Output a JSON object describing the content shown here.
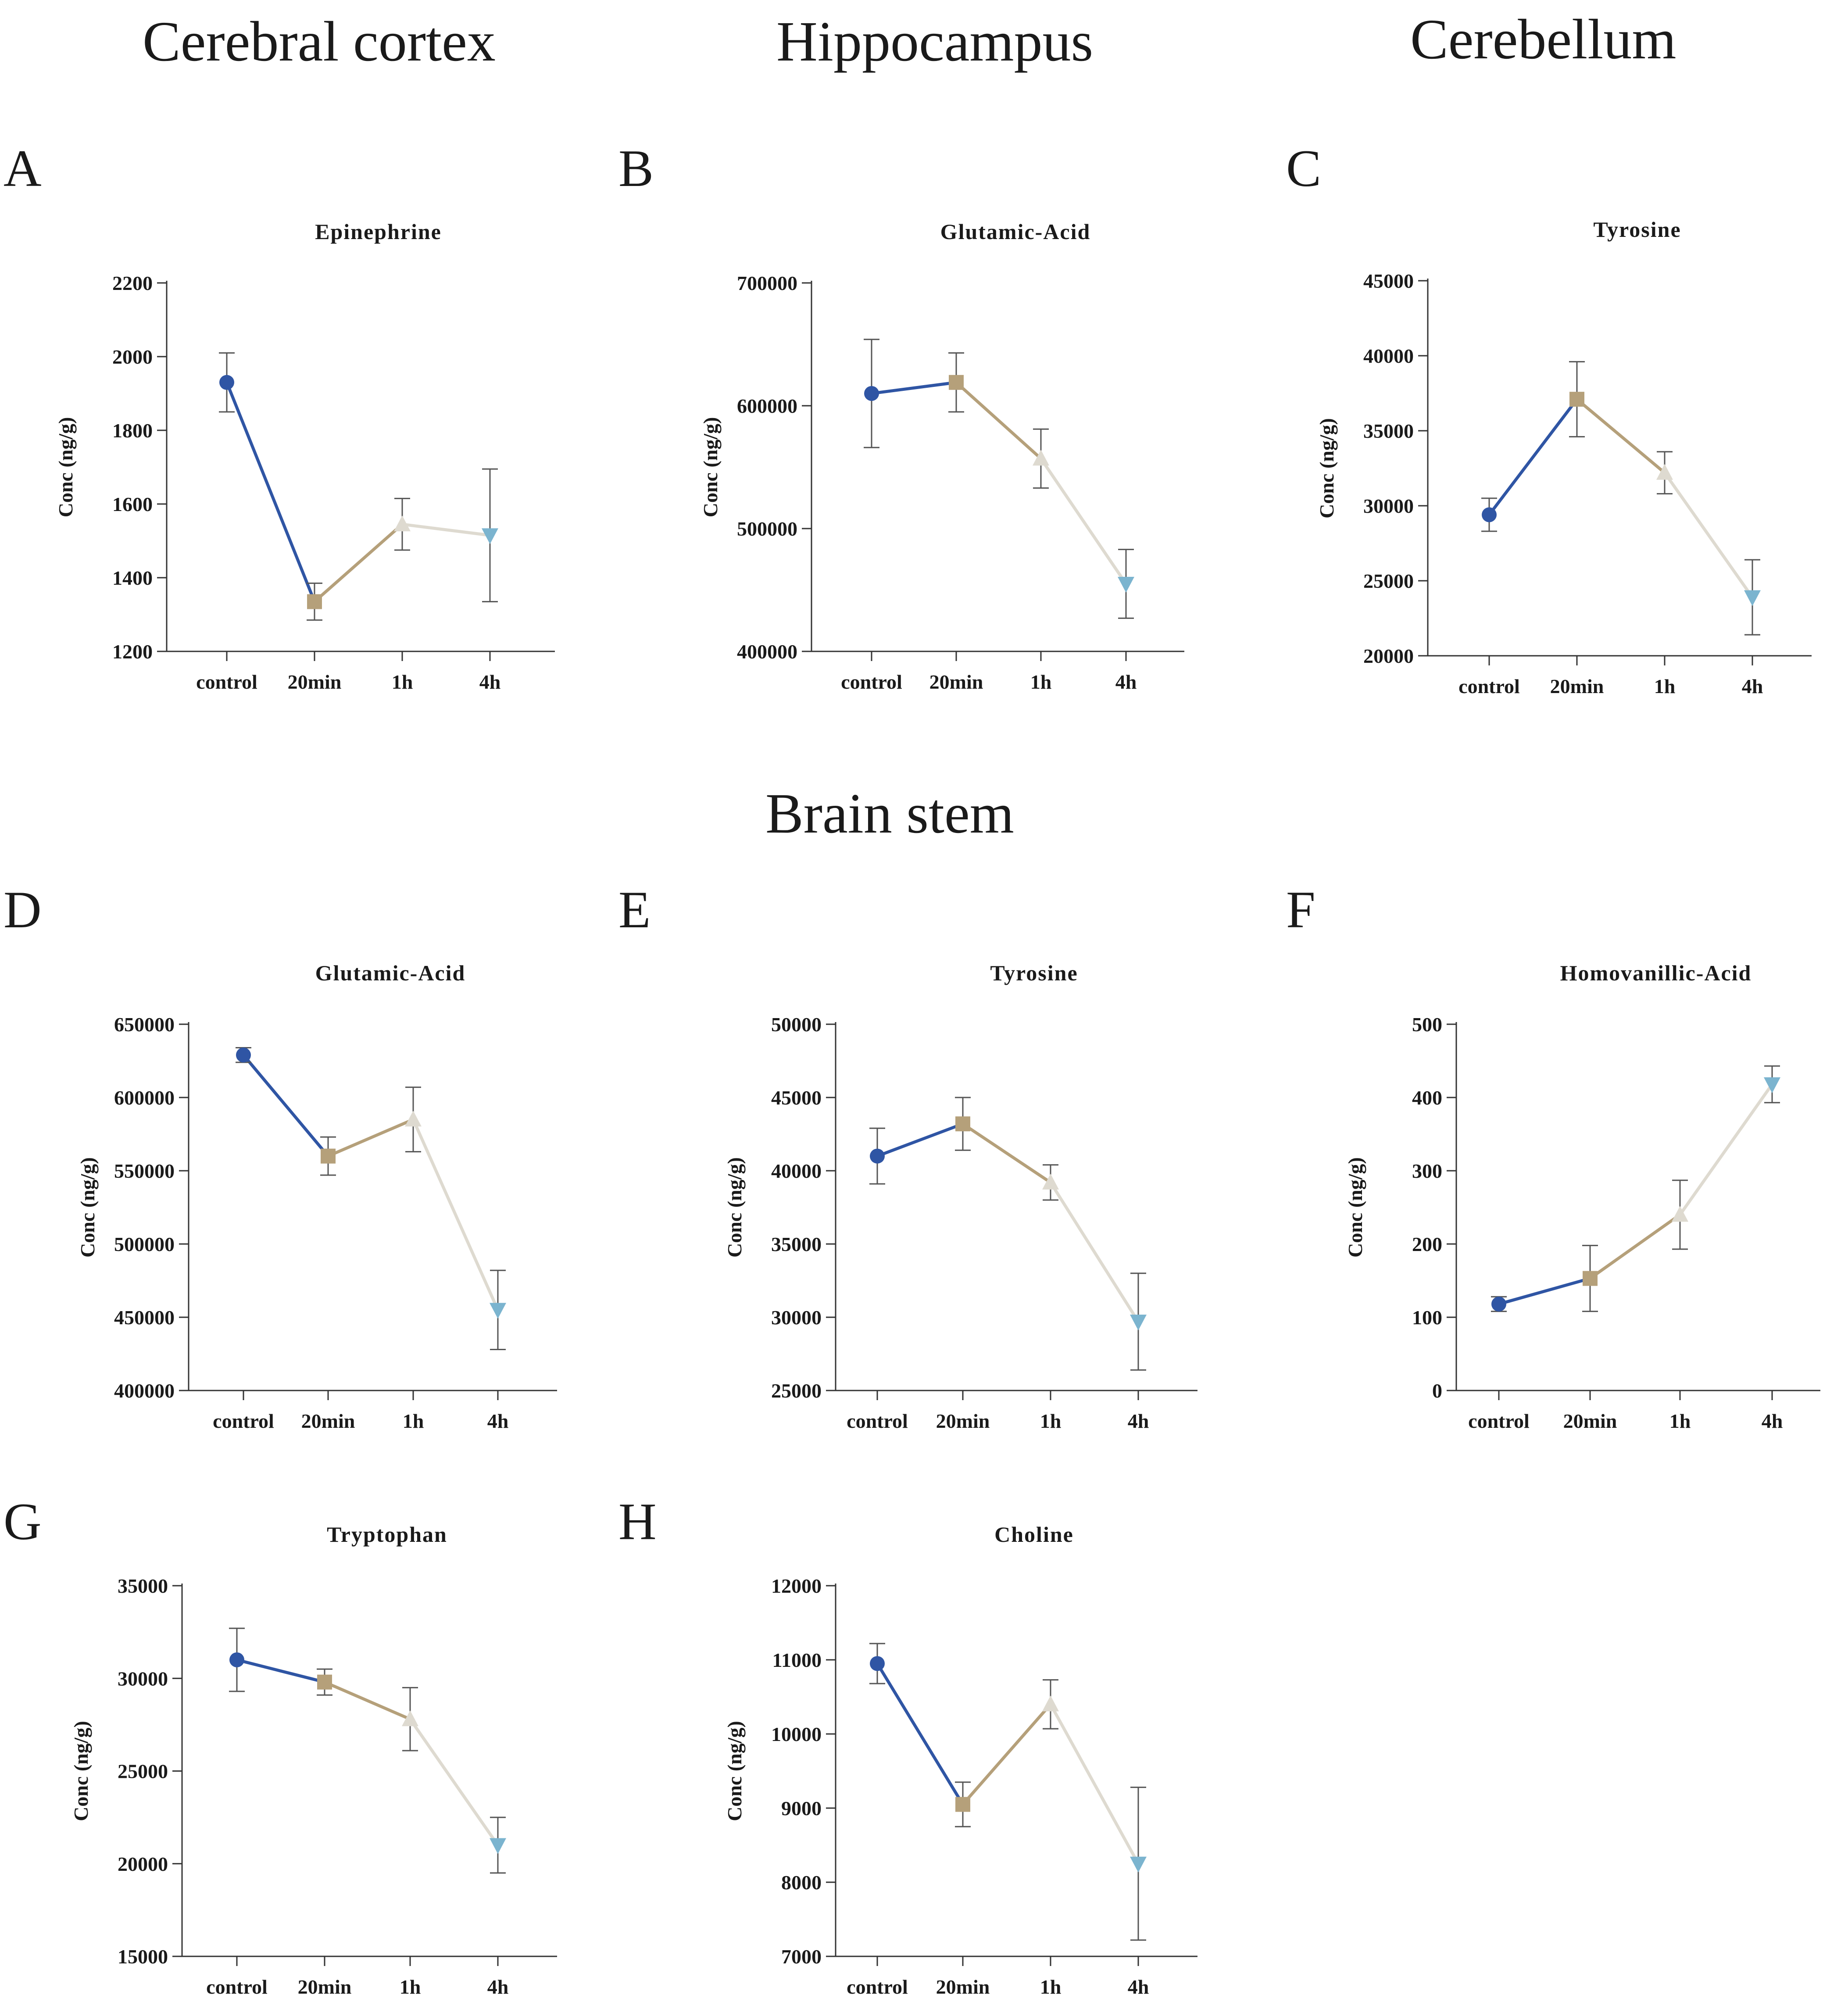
{
  "sections": {
    "cortex": "Cerebral cortex",
    "hippocampus": "Hippocampus",
    "cerebellum": "Cerebellum",
    "brainstem": "Brain stem"
  },
  "colors": {
    "control": "#2f55a4",
    "20min": "#b5a07a",
    "1h": "#dedad0",
    "4h": "#7bb4cf",
    "axis": "#333333",
    "error": "#555555"
  },
  "chart_data": [
    {
      "panel": "A",
      "type": "line",
      "title": "Epinephrine",
      "xlabel": "",
      "ylabel": "Conc (ng/g)",
      "categories": [
        "control",
        "20min",
        "1h",
        "4h"
      ],
      "values": [
        1930,
        1335,
        1545,
        1515
      ],
      "errors": [
        80,
        50,
        70,
        180
      ],
      "ylim": [
        1200,
        2200
      ],
      "yticks": [
        1200,
        1400,
        1600,
        1800,
        2000,
        2200
      ]
    },
    {
      "panel": "B",
      "type": "line",
      "title": "Glutamic-Acid",
      "xlabel": "",
      "ylabel": "Conc (ng/g)",
      "categories": [
        "control",
        "20min",
        "1h",
        "4h"
      ],
      "values": [
        610000,
        619000,
        557000,
        455000
      ],
      "errors": [
        44000,
        24000,
        24000,
        28000
      ],
      "ylim": [
        400000,
        700000
      ],
      "yticks": [
        400000,
        500000,
        600000,
        700000
      ]
    },
    {
      "panel": "C",
      "type": "line",
      "title": "Tyrosine",
      "xlabel": "",
      "ylabel": "Conc (ng/g)",
      "categories": [
        "control",
        "20min",
        "1h",
        "4h"
      ],
      "values": [
        29400,
        37100,
        32200,
        23900
      ],
      "errors": [
        1100,
        2500,
        1400,
        2500
      ],
      "ylim": [
        20000,
        45000
      ],
      "yticks": [
        20000,
        25000,
        30000,
        35000,
        40000,
        45000
      ]
    },
    {
      "panel": "D",
      "type": "line",
      "title": "Glutamic-Acid",
      "xlabel": "",
      "ylabel": "Conc (ng/g)",
      "categories": [
        "control",
        "20min",
        "1h",
        "4h"
      ],
      "values": [
        629000,
        560000,
        585000,
        455000
      ],
      "errors": [
        5000,
        13000,
        22000,
        27000
      ],
      "ylim": [
        400000,
        650000
      ],
      "yticks": [
        400000,
        450000,
        500000,
        550000,
        600000,
        650000
      ]
    },
    {
      "panel": "E",
      "type": "line",
      "title": "Tyrosine",
      "xlabel": "",
      "ylabel": "Conc (ng/g)",
      "categories": [
        "control",
        "20min",
        "1h",
        "4h"
      ],
      "values": [
        41000,
        43200,
        39200,
        29700
      ],
      "errors": [
        1900,
        1800,
        1200,
        3300
      ],
      "ylim": [
        25000,
        50000
      ],
      "yticks": [
        25000,
        30000,
        35000,
        40000,
        45000,
        50000
      ]
    },
    {
      "panel": "F",
      "type": "line",
      "title": "Homovanillic-Acid",
      "xlabel": "",
      "ylabel": "Conc (ng/g)",
      "categories": [
        "control",
        "20min",
        "1h",
        "4h"
      ],
      "values": [
        118,
        153,
        240,
        418
      ],
      "errors": [
        10,
        45,
        47,
        25
      ],
      "ylim": [
        0,
        500
      ],
      "yticks": [
        0,
        100,
        200,
        300,
        400,
        500
      ]
    },
    {
      "panel": "G",
      "type": "line",
      "title": "Tryptophan",
      "xlabel": "",
      "ylabel": "Conc (ng/g)",
      "categories": [
        "control",
        "20min",
        "1h",
        "4h"
      ],
      "values": [
        31000,
        29800,
        27800,
        21000
      ],
      "errors": [
        1700,
        700,
        1700,
        1500
      ],
      "ylim": [
        15000,
        35000
      ],
      "yticks": [
        15000,
        20000,
        25000,
        30000,
        35000
      ]
    },
    {
      "panel": "H",
      "type": "line",
      "title": "Choline",
      "xlabel": "",
      "ylabel": "Conc (ng/g)",
      "categories": [
        "control",
        "20min",
        "1h",
        "4h"
      ],
      "values": [
        10950,
        9050,
        10400,
        8250
      ],
      "errors": [
        270,
        300,
        330,
        1030
      ],
      "ylim": [
        7000,
        12000
      ],
      "yticks": [
        7000,
        8000,
        9000,
        10000,
        11000,
        12000
      ]
    }
  ]
}
